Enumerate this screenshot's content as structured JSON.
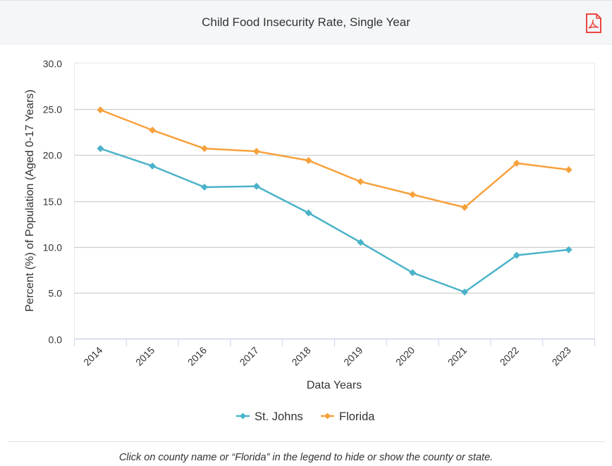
{
  "header": {
    "title": "Child Food Insecurity Rate, Single Year",
    "pdf_icon": "pdf-file-icon"
  },
  "footnote": "Click on county name or “Florida” in the legend to hide or show the county or state.",
  "chart_data": {
    "type": "line",
    "title": "Child Food Insecurity Rate, Single Year",
    "xlabel": "Data Years",
    "ylabel": "Percent (%) of Population (Aged 0-17 Years)",
    "categories": [
      "2014",
      "2015",
      "2016",
      "2017",
      "2018",
      "2019",
      "2020",
      "2021",
      "2022",
      "2023"
    ],
    "ylim": [
      0,
      30
    ],
    "yticks": [
      0,
      5,
      10,
      15,
      20,
      25,
      30
    ],
    "ytick_labels": [
      "0.0",
      "5.0",
      "10.0",
      "15.0",
      "20.0",
      "25.0",
      "30.0"
    ],
    "grid": true,
    "legend_position": "bottom-center",
    "series": [
      {
        "name": "St. Johns",
        "color": "#4bb3c9",
        "marker": "diamond",
        "values": [
          20.7,
          18.8,
          16.5,
          16.6,
          13.7,
          10.5,
          7.2,
          5.1,
          9.1,
          9.7
        ]
      },
      {
        "name": "Florida",
        "color": "#f7a13c",
        "marker": "diamond",
        "values": [
          24.9,
          22.7,
          20.7,
          20.4,
          19.4,
          17.1,
          15.7,
          14.3,
          19.1,
          18.4
        ]
      }
    ]
  }
}
